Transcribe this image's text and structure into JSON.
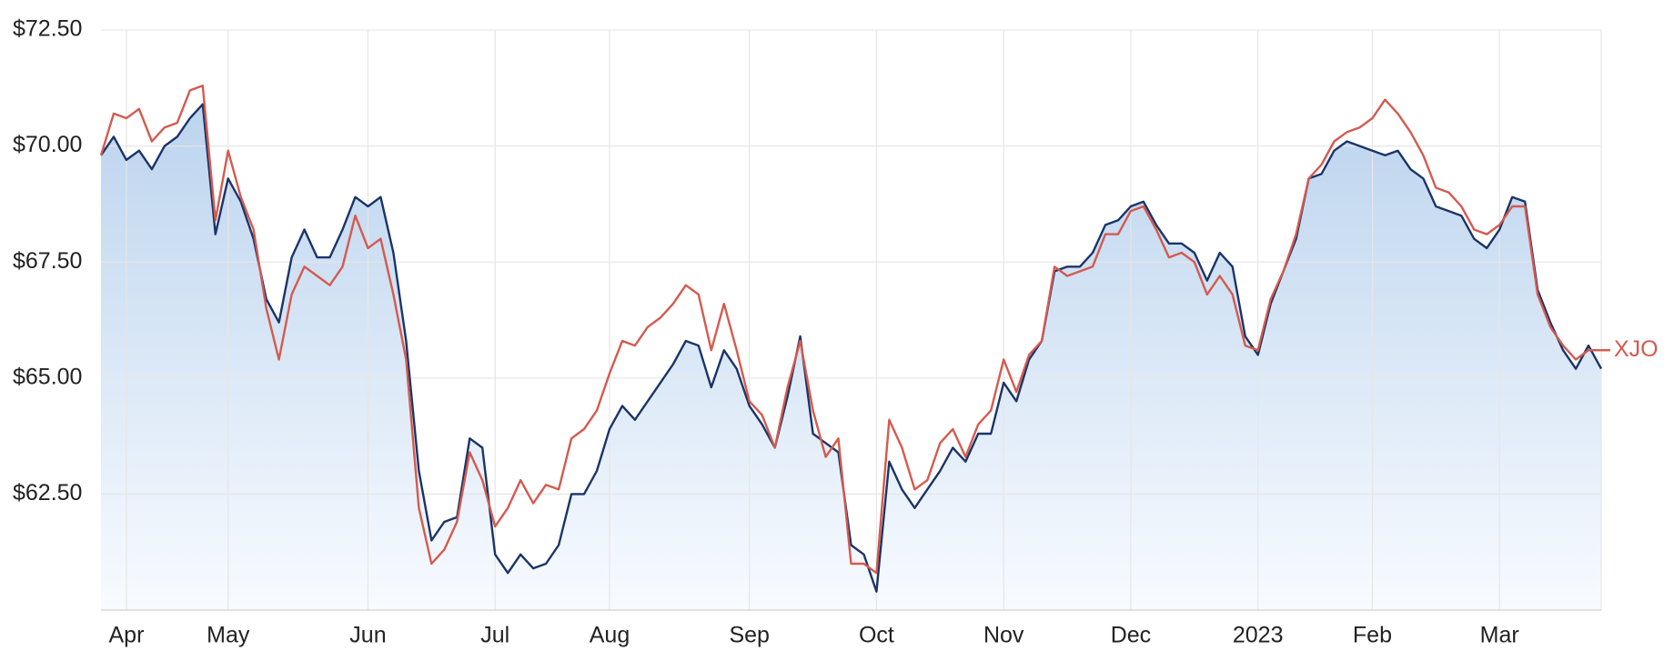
{
  "chart_data": {
    "type": "line",
    "categories": [
      null,
      null,
      "Apr",
      null,
      null,
      null,
      null,
      null,
      null,
      null,
      "May",
      null,
      null,
      null,
      null,
      null,
      null,
      null,
      null,
      null,
      null,
      "Jun",
      null,
      null,
      null,
      null,
      null,
      null,
      null,
      null,
      null,
      "Jul",
      null,
      null,
      null,
      null,
      null,
      null,
      null,
      null,
      "Aug",
      null,
      null,
      null,
      null,
      null,
      null,
      null,
      null,
      null,
      null,
      "Sep",
      null,
      null,
      null,
      null,
      null,
      null,
      null,
      null,
      null,
      "Oct",
      null,
      null,
      null,
      null,
      null,
      null,
      null,
      null,
      null,
      "Nov",
      null,
      null,
      null,
      null,
      null,
      null,
      null,
      null,
      null,
      "Dec",
      null,
      null,
      null,
      null,
      null,
      null,
      null,
      null,
      null,
      "2023",
      null,
      null,
      null,
      null,
      null,
      null,
      null,
      null,
      "Feb",
      null,
      null,
      null,
      null,
      null,
      null,
      null,
      null,
      null,
      "Mar",
      null,
      null,
      null,
      null,
      null,
      null,
      null,
      null
    ],
    "series": [
      {
        "color": "#1b3468",
        "area": true,
        "values": [
          69.8,
          70.2,
          69.7,
          69.9,
          69.5,
          70.0,
          70.2,
          70.6,
          70.9,
          68.1,
          69.3,
          68.8,
          68.0,
          66.7,
          66.2,
          67.6,
          68.2,
          67.6,
          67.6,
          68.2,
          68.9,
          68.7,
          68.9,
          67.7,
          65.8,
          63.0,
          61.5,
          61.9,
          62.0,
          63.7,
          63.5,
          61.2,
          60.8,
          61.2,
          60.9,
          61.0,
          61.4,
          62.5,
          62.5,
          63.0,
          63.9,
          64.4,
          64.1,
          64.5,
          64.9,
          65.3,
          65.8,
          65.7,
          64.8,
          65.6,
          65.2,
          64.4,
          64.0,
          63.5,
          64.6,
          65.9,
          63.8,
          63.6,
          63.4,
          61.4,
          61.2,
          60.4,
          63.2,
          62.6,
          62.2,
          62.6,
          63.0,
          63.5,
          63.2,
          63.8,
          63.8,
          64.9,
          64.5,
          65.4,
          65.8,
          67.3,
          67.4,
          67.4,
          67.7,
          68.3,
          68.4,
          68.7,
          68.8,
          68.3,
          67.9,
          67.9,
          67.7,
          67.1,
          67.7,
          67.4,
          65.9,
          65.5,
          66.6,
          67.3,
          68.0,
          69.3,
          69.4,
          69.9,
          70.1,
          70.0,
          69.9,
          69.8,
          69.9,
          69.5,
          69.3,
          68.7,
          68.6,
          68.5,
          68.0,
          67.8,
          68.2,
          68.9,
          68.8,
          66.9,
          66.2,
          65.6,
          65.2,
          65.7,
          65.2
        ]
      },
      {
        "name": "XJO",
        "color": "#d45a4f",
        "values": [
          69.8,
          70.7,
          70.6,
          70.8,
          70.1,
          70.4,
          70.5,
          71.2,
          71.3,
          68.4,
          69.9,
          68.9,
          68.2,
          66.5,
          65.4,
          66.8,
          67.4,
          67.2,
          67.0,
          67.4,
          68.5,
          67.8,
          68.0,
          66.8,
          65.4,
          62.2,
          61.0,
          61.3,
          61.9,
          63.4,
          62.8,
          61.8,
          62.2,
          62.8,
          62.3,
          62.7,
          62.6,
          63.7,
          63.9,
          64.3,
          65.1,
          65.8,
          65.7,
          66.1,
          66.3,
          66.6,
          67.0,
          66.8,
          65.6,
          66.6,
          65.6,
          64.5,
          64.2,
          63.5,
          64.8,
          65.8,
          64.3,
          63.3,
          63.7,
          61.0,
          61.0,
          60.8,
          64.1,
          63.5,
          62.6,
          62.8,
          63.6,
          63.9,
          63.3,
          64.0,
          64.3,
          65.4,
          64.7,
          65.5,
          65.8,
          67.4,
          67.2,
          67.3,
          67.4,
          68.1,
          68.1,
          68.6,
          68.7,
          68.2,
          67.6,
          67.7,
          67.5,
          66.8,
          67.2,
          66.8,
          65.7,
          65.6,
          66.7,
          67.3,
          68.1,
          69.3,
          69.6,
          70.1,
          70.3,
          70.4,
          70.6,
          71.0,
          70.7,
          70.3,
          69.8,
          69.1,
          69.0,
          68.7,
          68.2,
          68.1,
          68.3,
          68.7,
          68.7,
          66.8,
          66.1,
          65.7,
          65.4,
          65.6,
          65.6
        ]
      }
    ],
    "ylim": [
      60,
      72.5
    ],
    "yticks": [
      {
        "value": 62.5,
        "label": "$62.50"
      },
      {
        "value": 65,
        "label": "$65.00"
      },
      {
        "value": 67.5,
        "label": "$67.50"
      },
      {
        "value": 70,
        "label": "$70.00"
      },
      {
        "value": 72.5,
        "label": "$72.50"
      }
    ],
    "grid": true
  }
}
